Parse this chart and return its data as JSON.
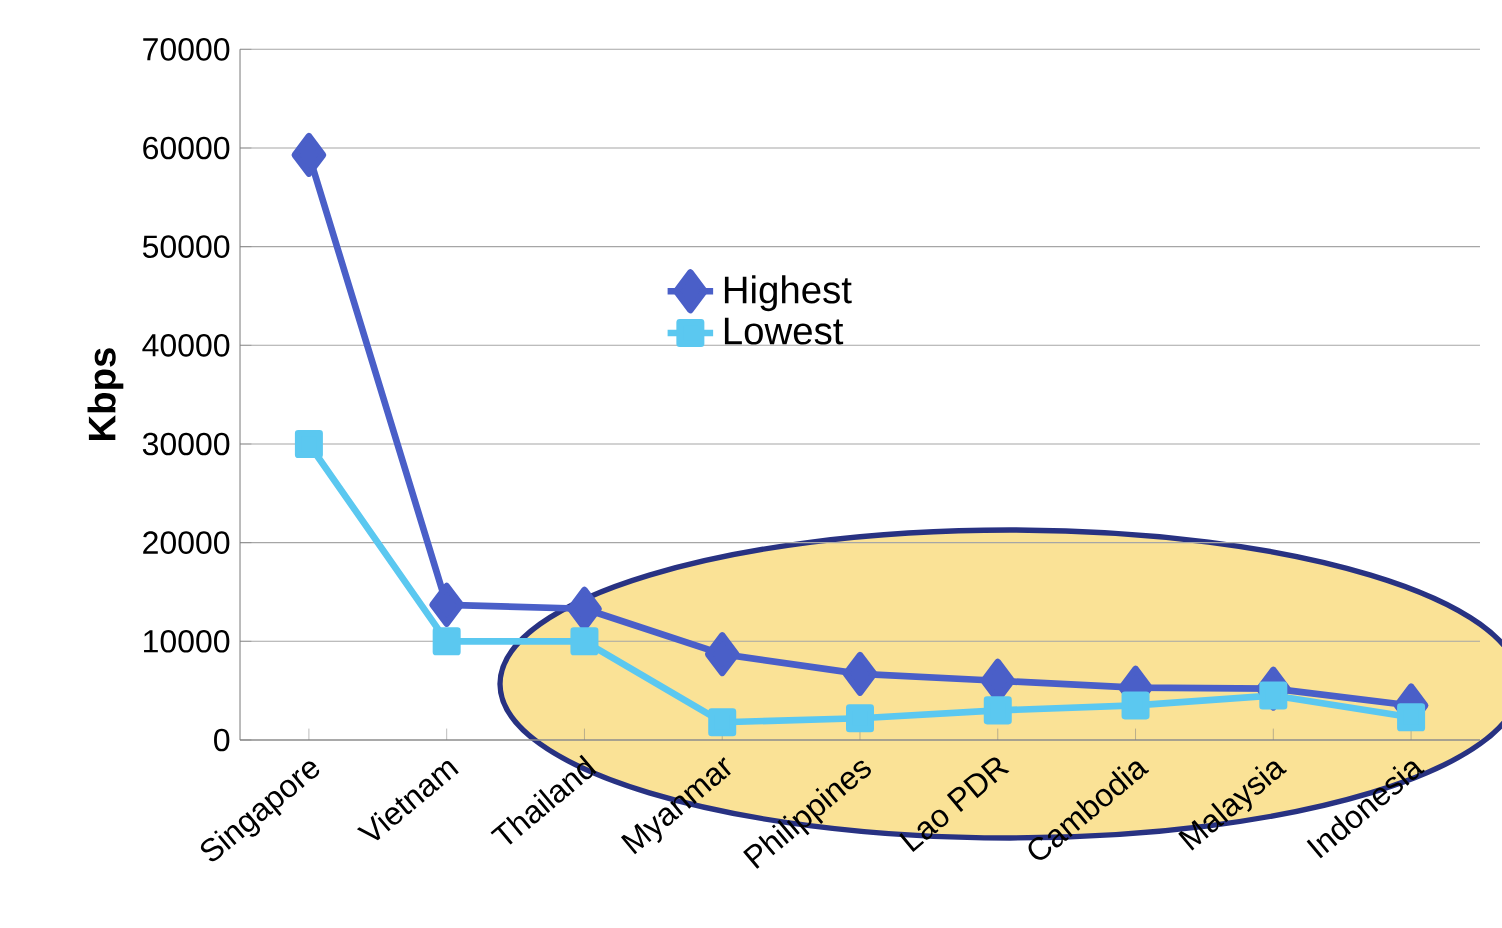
{
  "chart_data": {
    "type": "line",
    "ylabel": "Kbps",
    "categories": [
      "Singapore",
      "Vietnam",
      "Thailand",
      "Myanmar",
      "Philippines",
      "Lao PDR",
      "Cambodia",
      "Malaysia",
      "Indonesia"
    ],
    "series": [
      {
        "name": "Highest",
        "color": "#4a5fc8",
        "marker": "diamond",
        "values": [
          59300,
          13700,
          13300,
          8700,
          6700,
          6000,
          5300,
          5200,
          3500
        ]
      },
      {
        "name": "Lowest",
        "color": "#5bc8f0",
        "marker": "square",
        "values": [
          30000,
          10000,
          10000,
          1800,
          2200,
          3000,
          3500,
          4500,
          2300
        ]
      }
    ],
    "ylim": [
      0,
      70000
    ],
    "yticks": [
      0,
      10000,
      20000,
      30000,
      40000,
      50000,
      60000,
      70000
    ],
    "grid": "y",
    "legend": "center",
    "line_style": "solid"
  }
}
